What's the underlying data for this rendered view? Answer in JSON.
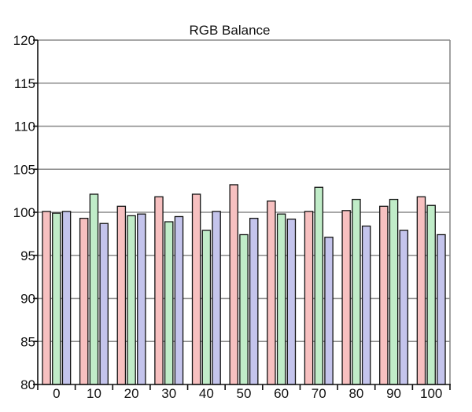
{
  "chart_data": {
    "type": "bar",
    "title": "RGB Balance",
    "xlabel": "",
    "ylabel": "",
    "categories": [
      "0",
      "10",
      "20",
      "30",
      "40",
      "50",
      "60",
      "70",
      "80",
      "90",
      "100"
    ],
    "series": [
      {
        "values": [
          100.1,
          99.3,
          100.7,
          101.8,
          102.1,
          103.2,
          101.3,
          100.1,
          100.2,
          100.7,
          101.8
        ],
        "color": "#f7c0c0"
      },
      {
        "values": [
          99.9,
          102.1,
          99.6,
          98.9,
          97.9,
          97.4,
          99.8,
          102.9,
          101.5,
          101.5,
          100.8
        ],
        "color": "#c0ecc8"
      },
      {
        "values": [
          100.1,
          98.7,
          99.8,
          99.5,
          100.1,
          99.3,
          99.2,
          97.1,
          98.4,
          97.9,
          97.4
        ],
        "color": "#c4c4ec"
      }
    ],
    "ylim": [
      80,
      120
    ],
    "yticks": [
      80,
      85,
      90,
      95,
      100,
      105,
      110,
      115,
      120
    ],
    "grid": true,
    "legend": "none"
  }
}
